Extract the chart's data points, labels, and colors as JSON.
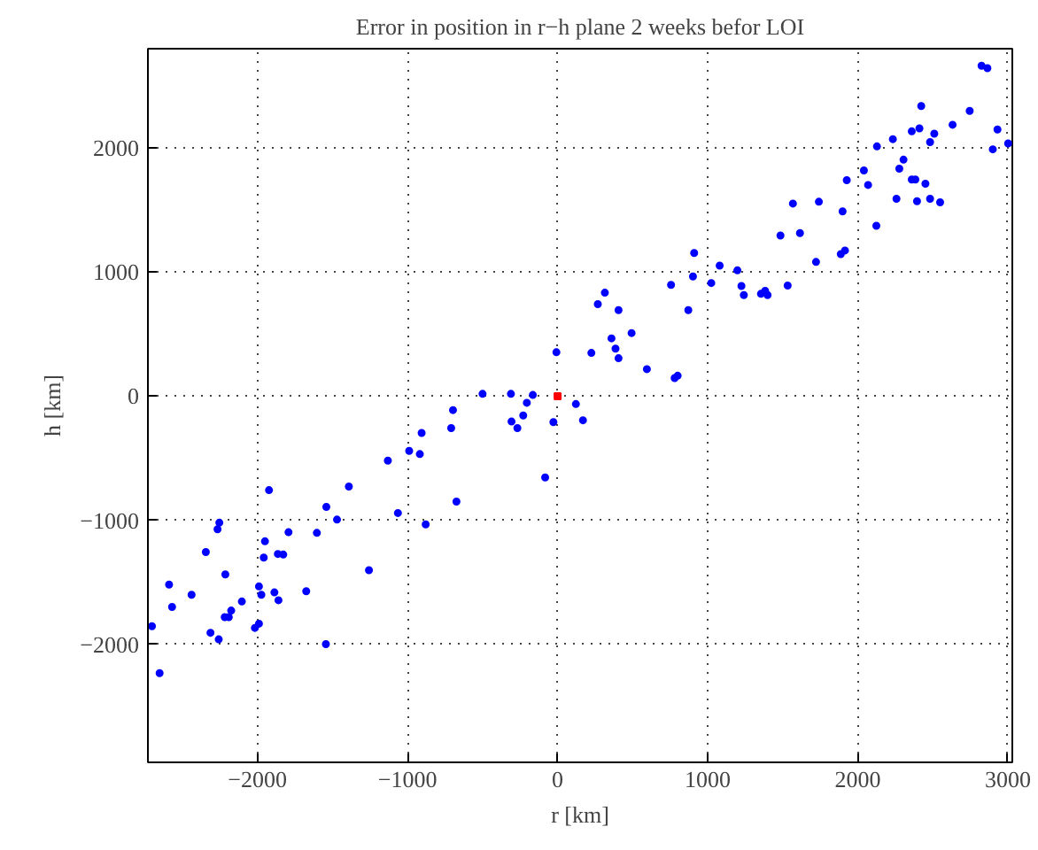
{
  "chart_data": {
    "type": "scatter",
    "title": "Error in position in r−h plane 2 weeks befor LOI",
    "xlabel": "r [km]",
    "ylabel": "h [km]",
    "xlim": [
      -2730,
      3030
    ],
    "ylim": [
      -2950,
      2800
    ],
    "xticks": [
      -2000,
      -1000,
      0,
      1000,
      2000,
      3000
    ],
    "yticks": [
      -2000,
      -1000,
      0,
      1000,
      2000
    ],
    "grid": true,
    "series": [
      {
        "color": "#0000ff",
        "marker": "circle",
        "x": [
          2825,
          2864,
          2423,
          2746,
          2234,
          2360,
          2411,
          2510,
          2482,
          2632,
          2931,
          2900,
          3002,
          2128,
          2305,
          2277,
          2041,
          2069,
          2360,
          2384,
          2451,
          1927,
          2258,
          2395,
          2482,
          2549,
          2124,
          1568,
          1741,
          1899,
          1485,
          1615,
          1722,
          1887,
          1915,
          910,
          902,
          756,
          871,
          1024,
          1080,
          1198,
          1225,
          1241,
          1355,
          1383,
          1399,
          1533,
          315,
          268,
          406,
          359,
          386,
          406,
          493,
          225,
          -8,
          595,
          780,
          800,
          122,
          169,
          -500,
          -311,
          -165,
          -205,
          -229,
          -307,
          -268,
          -28,
          -83,
          -697,
          -709,
          -906,
          -918,
          -989,
          -1131,
          -674,
          -879,
          -1064,
          -1391,
          -1541,
          -1470,
          -1604,
          -1793,
          -1923,
          -1950,
          -1958,
          -1864,
          -1828,
          -2254,
          -2266,
          -2344,
          -2214,
          -2589,
          -2569,
          -2439,
          -1990,
          -1974,
          -1887,
          -1860,
          -1675,
          -1257,
          -2104,
          -2175,
          -2191,
          -2218,
          -2313,
          -2258,
          -2017,
          -1990,
          -1544,
          -2703,
          -2652
        ],
        "values": [
          2663,
          2643,
          2338,
          2299,
          2071,
          2134,
          2158,
          2115,
          2047,
          2187,
          2149,
          1989,
          2037,
          2013,
          1906,
          1833,
          1819,
          1702,
          1746,
          1746,
          1712,
          1741,
          1591,
          1571,
          1591,
          1562,
          1373,
          1552,
          1567,
          1489,
          1295,
          1314,
          1082,
          1145,
          1174,
          1154,
          965,
          897,
          694,
          912,
          1052,
          1014,
          888,
          815,
          825,
          849,
          815,
          892,
          834,
          742,
          694,
          466,
          383,
          306,
          509,
          349,
          354,
          218,
          146,
          165,
          -63,
          -194,
          19,
          19,
          10,
          -53,
          -155,
          -204,
          -257,
          -209,
          -655,
          -112,
          -257,
          -296,
          -466,
          -441,
          -519,
          -849,
          -1033,
          -941,
          -728,
          -892,
          -994,
          -1101,
          -1096,
          -757,
          -1169,
          -1300,
          -1271,
          -1276,
          -1019,
          -1072,
          -1256,
          -1436,
          -1518,
          -1698,
          -1600,
          -1533,
          -1600,
          -1581,
          -1644,
          -1571,
          -1402,
          -1654,
          -1727,
          -1780,
          -1780,
          -1906,
          -1959,
          -1867,
          -1833,
          -1998,
          -1853,
          -2231
        ]
      },
      {
        "color": "#ff0000",
        "marker": "square",
        "x": [
          0
        ],
        "values": [
          0
        ]
      }
    ]
  }
}
